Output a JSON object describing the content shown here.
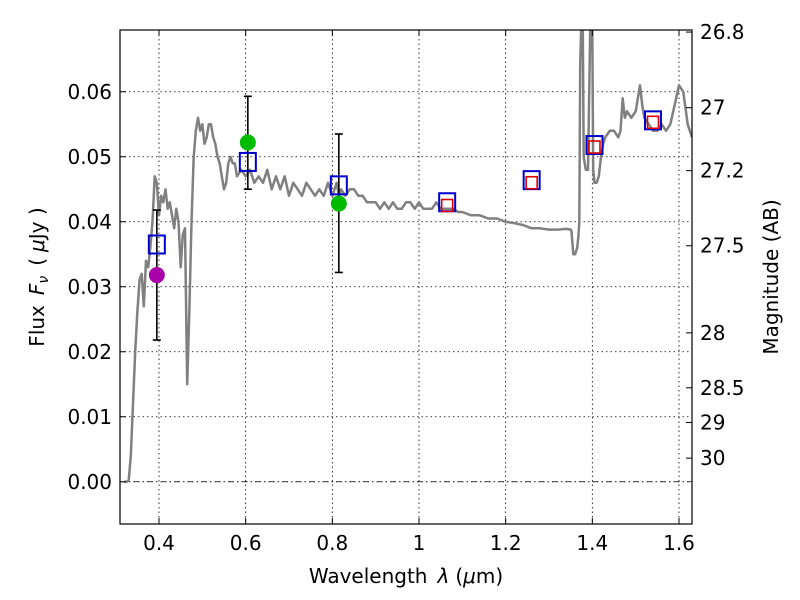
{
  "chart_data": {
    "type": "line",
    "x_axis": {
      "label_prefix": "Wavelength",
      "label_symbol": "λ",
      "label_unit_open": "(",
      "label_unit_mu": "μ",
      "label_unit_rest": "m)",
      "range": [
        0.31,
        1.63
      ],
      "ticks": [
        0.4,
        0.6,
        0.8,
        1.0,
        1.2,
        1.4,
        1.6
      ],
      "tick_labels": [
        "0.4",
        "0.6",
        "0.8",
        "1",
        "1.2",
        "1.4",
        "1.6"
      ]
    },
    "y_axis": {
      "label_prefix": "Flux",
      "label_symbol": "F",
      "label_subscript": "ν",
      "label_unit_open": "(",
      "label_unit_mu": "μ",
      "label_unit_rest": "Jy )",
      "range": [
        -0.0065,
        0.0695
      ],
      "ticks": [
        0.0,
        0.01,
        0.02,
        0.03,
        0.04,
        0.05,
        0.06
      ],
      "tick_labels": [
        "0.00",
        "0.01",
        "0.02",
        "0.03",
        "0.04",
        "0.05",
        "0.06"
      ]
    },
    "y2_axis": {
      "label": "Magnitude (AB)",
      "ticks": [
        26.8,
        27.0,
        27.2,
        27.5,
        28.0,
        28.5,
        29.0,
        30.0
      ],
      "tick_labels": [
        "26.8",
        "27",
        "27.2",
        "27.5",
        "28",
        "28.5",
        "29",
        "30"
      ]
    },
    "grid": true,
    "zero_line": true,
    "series": [
      {
        "name": "model spectrum",
        "kind": "line",
        "color": "#808080",
        "points": [
          [
            0.32,
            0.0
          ],
          [
            0.325,
            0.0
          ],
          [
            0.33,
            0.0002
          ],
          [
            0.335,
            0.004
          ],
          [
            0.34,
            0.012
          ],
          [
            0.345,
            0.02
          ],
          [
            0.35,
            0.026
          ],
          [
            0.355,
            0.031
          ],
          [
            0.36,
            0.032
          ],
          [
            0.365,
            0.027
          ],
          [
            0.37,
            0.034
          ],
          [
            0.375,
            0.033
          ],
          [
            0.38,
            0.036
          ],
          [
            0.385,
            0.04
          ],
          [
            0.39,
            0.047
          ],
          [
            0.395,
            0.046
          ],
          [
            0.4,
            0.041
          ],
          [
            0.405,
            0.044
          ],
          [
            0.41,
            0.043
          ],
          [
            0.415,
            0.045
          ],
          [
            0.42,
            0.042
          ],
          [
            0.425,
            0.043
          ],
          [
            0.43,
            0.041
          ],
          [
            0.435,
            0.039
          ],
          [
            0.44,
            0.042
          ],
          [
            0.445,
            0.04
          ],
          [
            0.45,
            0.033
          ],
          [
            0.455,
            0.038
          ],
          [
            0.46,
            0.039
          ],
          [
            0.465,
            0.015
          ],
          [
            0.47,
            0.026
          ],
          [
            0.475,
            0.04
          ],
          [
            0.48,
            0.05
          ],
          [
            0.485,
            0.054
          ],
          [
            0.49,
            0.056
          ],
          [
            0.495,
            0.054
          ],
          [
            0.5,
            0.055
          ],
          [
            0.505,
            0.052
          ],
          [
            0.51,
            0.053
          ],
          [
            0.515,
            0.055
          ],
          [
            0.52,
            0.055
          ],
          [
            0.525,
            0.053
          ],
          [
            0.53,
            0.052
          ],
          [
            0.535,
            0.05
          ],
          [
            0.54,
            0.049
          ],
          [
            0.545,
            0.047
          ],
          [
            0.55,
            0.045
          ],
          [
            0.555,
            0.046
          ],
          [
            0.56,
            0.049
          ],
          [
            0.565,
            0.05
          ],
          [
            0.57,
            0.049
          ],
          [
            0.575,
            0.049
          ],
          [
            0.58,
            0.047
          ],
          [
            0.59,
            0.048
          ],
          [
            0.6,
            0.047
          ],
          [
            0.61,
            0.048
          ],
          [
            0.62,
            0.046
          ],
          [
            0.63,
            0.047
          ],
          [
            0.64,
            0.046
          ],
          [
            0.65,
            0.048
          ],
          [
            0.66,
            0.045
          ],
          [
            0.67,
            0.047
          ],
          [
            0.68,
            0.045
          ],
          [
            0.69,
            0.047
          ],
          [
            0.7,
            0.044
          ],
          [
            0.71,
            0.046
          ],
          [
            0.72,
            0.045
          ],
          [
            0.73,
            0.044
          ],
          [
            0.74,
            0.046
          ],
          [
            0.75,
            0.045
          ],
          [
            0.76,
            0.044
          ],
          [
            0.77,
            0.045
          ],
          [
            0.78,
            0.044
          ],
          [
            0.79,
            0.046
          ],
          [
            0.8,
            0.044
          ],
          [
            0.81,
            0.046
          ],
          [
            0.815,
            0.044
          ],
          [
            0.82,
            0.045
          ],
          [
            0.83,
            0.044
          ],
          [
            0.84,
            0.045
          ],
          [
            0.85,
            0.045
          ],
          [
            0.86,
            0.044
          ],
          [
            0.87,
            0.044
          ],
          [
            0.88,
            0.043
          ],
          [
            0.89,
            0.043
          ],
          [
            0.9,
            0.043
          ],
          [
            0.91,
            0.042
          ],
          [
            0.92,
            0.043
          ],
          [
            0.93,
            0.042
          ],
          [
            0.94,
            0.043
          ],
          [
            0.95,
            0.042
          ],
          [
            0.96,
            0.042
          ],
          [
            0.97,
            0.043
          ],
          [
            0.98,
            0.043
          ],
          [
            0.99,
            0.042
          ],
          [
            1.0,
            0.043
          ],
          [
            1.01,
            0.042
          ],
          [
            1.02,
            0.042
          ],
          [
            1.03,
            0.042
          ],
          [
            1.04,
            0.043
          ],
          [
            1.05,
            0.042
          ],
          [
            1.06,
            0.042
          ],
          [
            1.07,
            0.042
          ],
          [
            1.08,
            0.042
          ],
          [
            1.09,
            0.0415
          ],
          [
            1.1,
            0.0415
          ],
          [
            1.12,
            0.041
          ],
          [
            1.14,
            0.041
          ],
          [
            1.16,
            0.0405
          ],
          [
            1.18,
            0.0405
          ],
          [
            1.2,
            0.04
          ],
          [
            1.22,
            0.0398
          ],
          [
            1.24,
            0.0395
          ],
          [
            1.26,
            0.039
          ],
          [
            1.28,
            0.039
          ],
          [
            1.3,
            0.0388
          ],
          [
            1.32,
            0.0388
          ],
          [
            1.34,
            0.0389
          ],
          [
            1.35,
            0.0388
          ],
          [
            1.352,
            0.0385
          ],
          [
            1.356,
            0.035
          ],
          [
            1.36,
            0.035
          ],
          [
            1.365,
            0.036
          ],
          [
            1.368,
            0.038
          ],
          [
            1.37,
            0.04
          ],
          [
            1.372,
            0.064
          ],
          [
            1.374,
            0.0695
          ],
          [
            1.378,
            0.0695
          ],
          [
            1.38,
            0.05
          ],
          [
            1.385,
            0.048
          ],
          [
            1.39,
            0.048
          ],
          [
            1.395,
            0.0695
          ],
          [
            1.4,
            0.0695
          ],
          [
            1.402,
            0.048
          ],
          [
            1.405,
            0.046
          ],
          [
            1.41,
            0.046
          ],
          [
            1.415,
            0.047
          ],
          [
            1.42,
            0.05
          ],
          [
            1.425,
            0.052
          ],
          [
            1.43,
            0.053
          ],
          [
            1.44,
            0.054
          ],
          [
            1.45,
            0.054
          ],
          [
            1.46,
            0.053
          ],
          [
            1.465,
            0.054
          ],
          [
            1.47,
            0.059
          ],
          [
            1.475,
            0.056
          ],
          [
            1.48,
            0.057
          ],
          [
            1.49,
            0.056
          ],
          [
            1.5,
            0.057
          ],
          [
            1.51,
            0.061
          ],
          [
            1.515,
            0.058
          ],
          [
            1.52,
            0.056
          ],
          [
            1.53,
            0.055
          ],
          [
            1.54,
            0.054
          ],
          [
            1.55,
            0.054
          ],
          [
            1.56,
            0.055
          ],
          [
            1.57,
            0.054
          ],
          [
            1.58,
            0.055
          ],
          [
            1.59,
            0.058
          ],
          [
            1.6,
            0.061
          ],
          [
            1.61,
            0.06
          ],
          [
            1.62,
            0.055
          ],
          [
            1.63,
            0.053
          ]
        ]
      },
      {
        "name": "model photometry (blue squares)",
        "kind": "open-square",
        "color": "#0000cc",
        "points": [
          [
            0.395,
            0.0365
          ],
          [
            0.605,
            0.0492
          ],
          [
            0.815,
            0.0456
          ],
          [
            1.065,
            0.043
          ],
          [
            1.26,
            0.0464
          ],
          [
            1.405,
            0.0518
          ],
          [
            1.54,
            0.0556
          ]
        ]
      },
      {
        "name": "observed photometry (red squares)",
        "kind": "open-square-small",
        "color": "#dd0000",
        "points": [
          [
            1.065,
            0.0425
          ],
          [
            1.26,
            0.046
          ],
          [
            1.405,
            0.0515
          ],
          [
            1.54,
            0.0553
          ]
        ]
      },
      {
        "name": "observed photometry (green)",
        "kind": "filled-circle",
        "color": "#00bb00",
        "points": [
          [
            0.605,
            0.0522
          ],
          [
            0.815,
            0.0428
          ]
        ]
      },
      {
        "name": "observed photometry (magenta)",
        "kind": "filled-circle",
        "color": "#aa00aa",
        "points": [
          [
            0.395,
            0.0318
          ]
        ]
      },
      {
        "name": "error bars",
        "kind": "errorbar",
        "color": "#000000",
        "bars": [
          {
            "x": 0.395,
            "low": 0.0218,
            "high": 0.0418
          },
          {
            "x": 0.605,
            "low": 0.045,
            "high": 0.0593
          },
          {
            "x": 0.815,
            "low": 0.0322,
            "high": 0.0535
          }
        ]
      }
    ]
  }
}
